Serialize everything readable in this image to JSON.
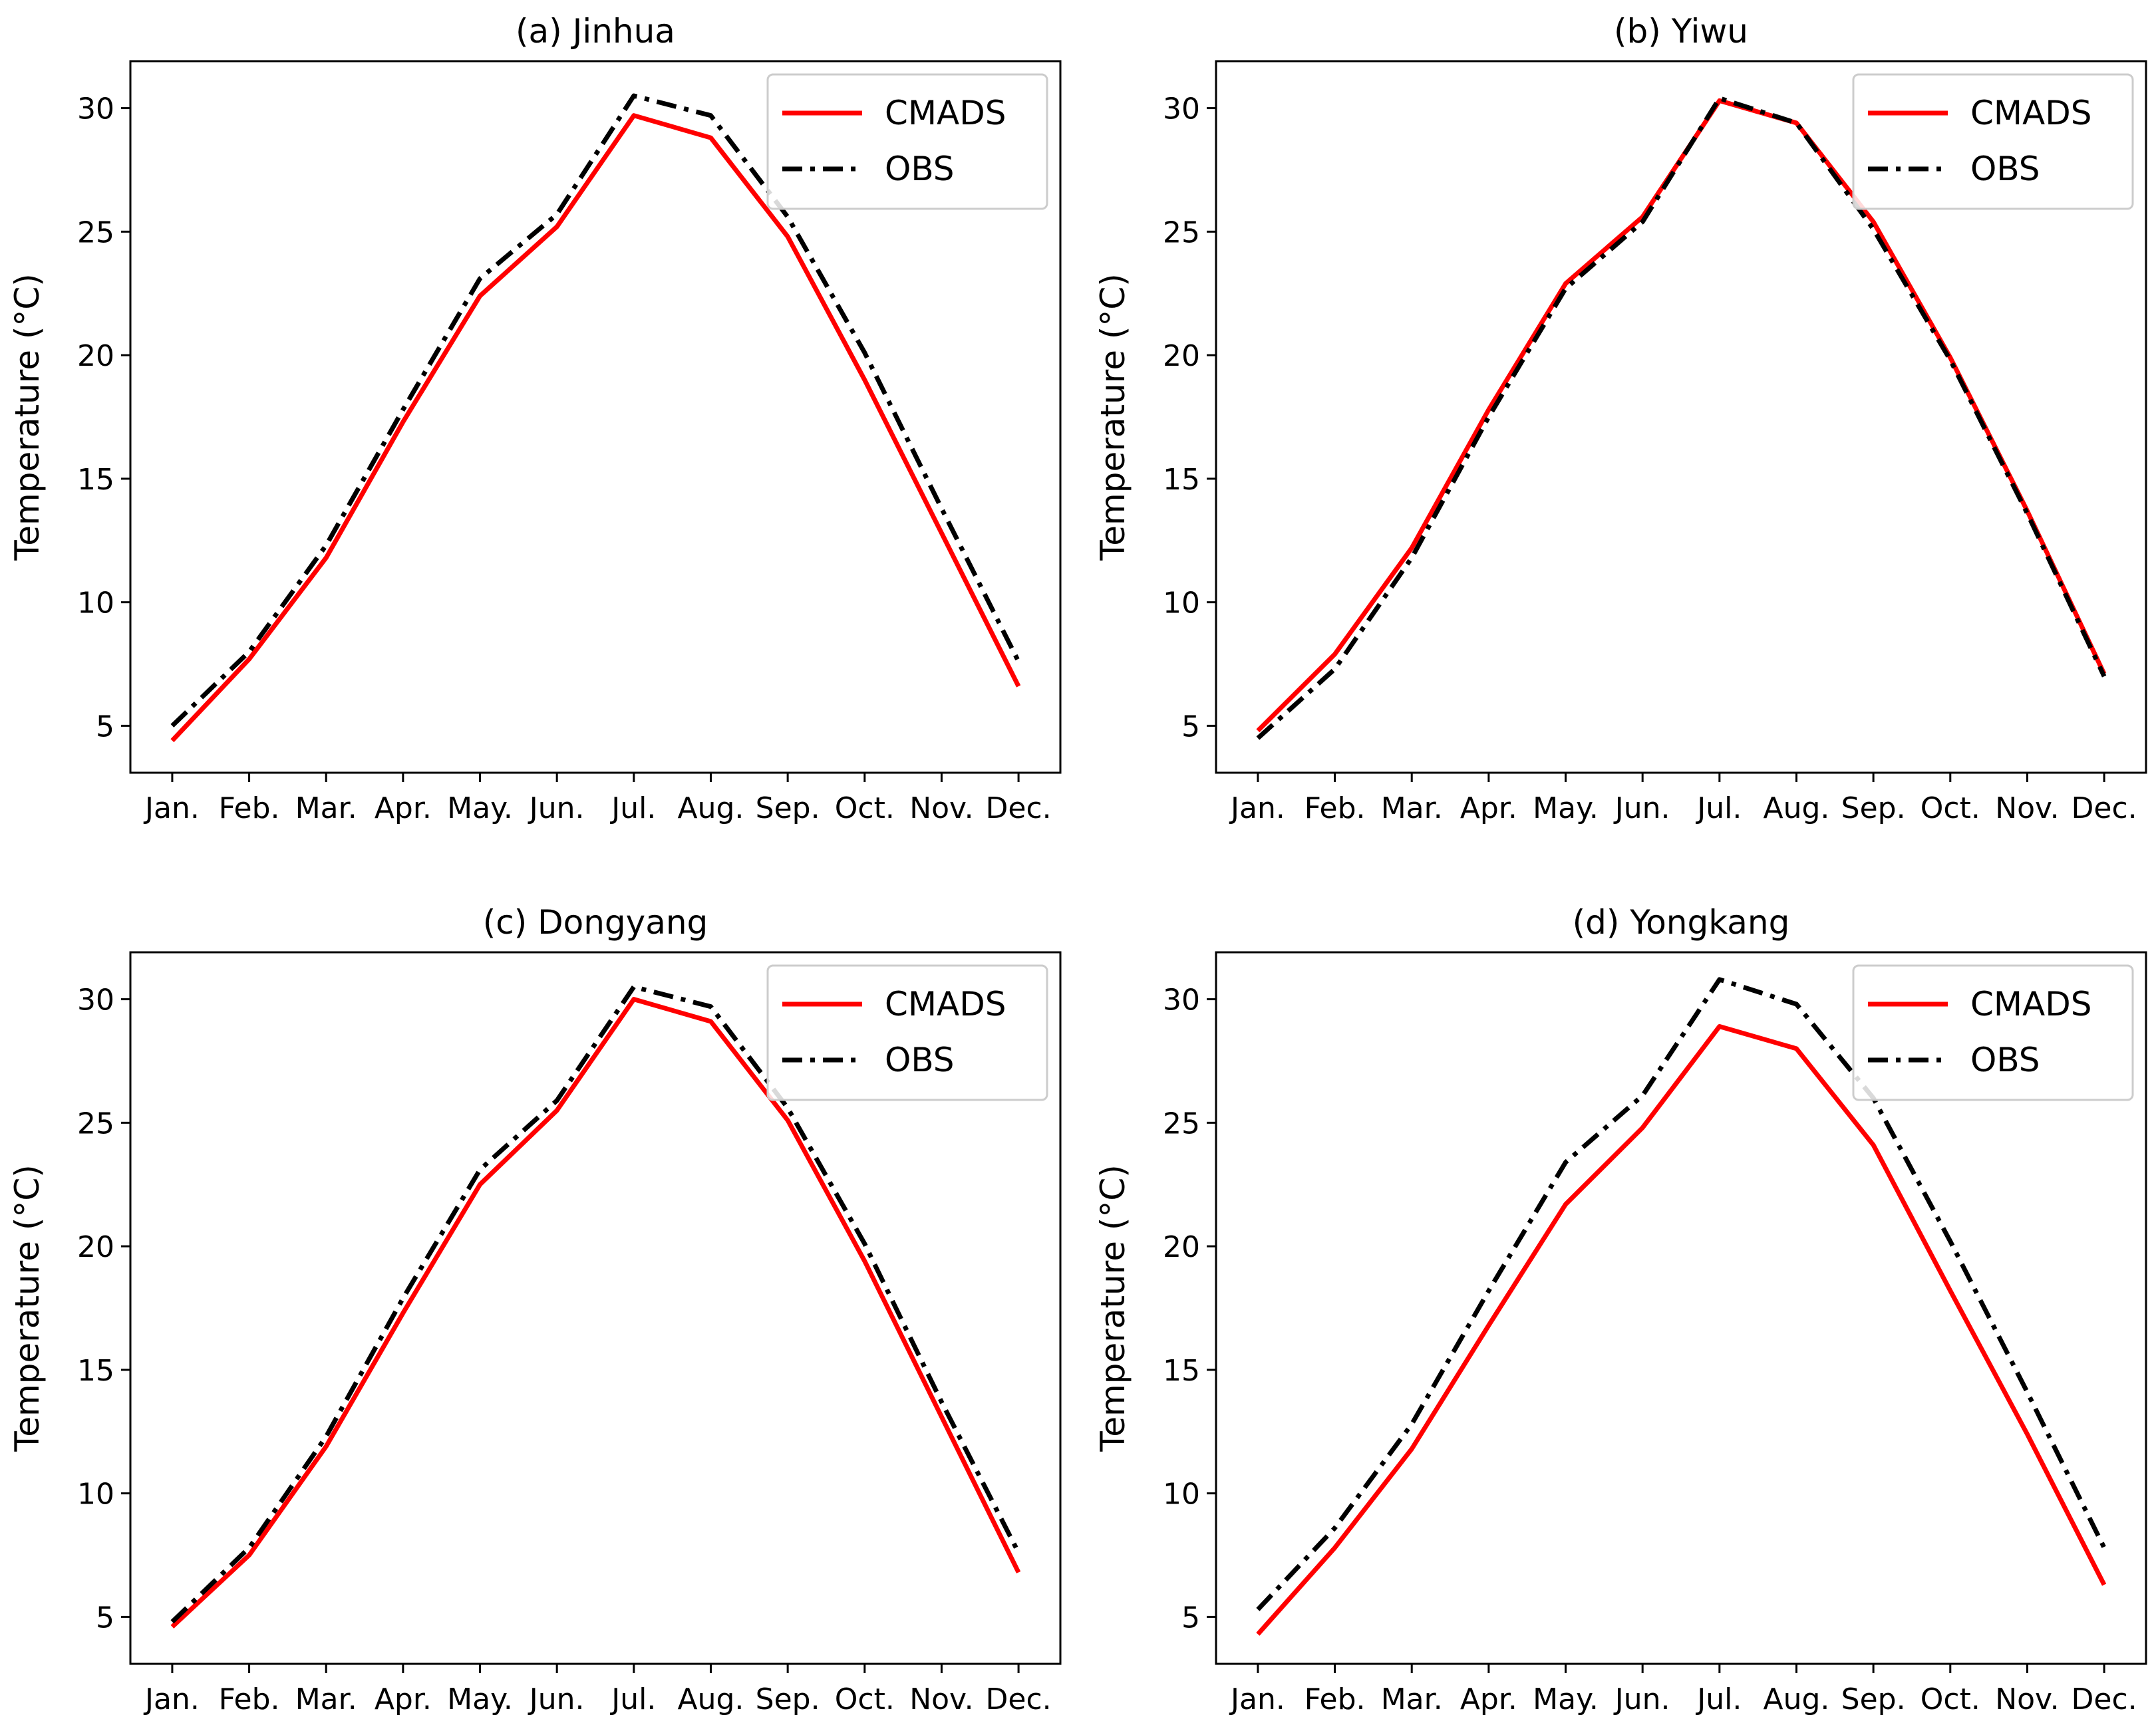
{
  "figure": {
    "ylabel": "Temperature (°C)"
  },
  "chart_data": [
    {
      "type": "line",
      "title": "(a) Jinhua",
      "xlabel": "",
      "ylabel": "Temperature (°C)",
      "categories": [
        "Jan.",
        "Feb.",
        "Mar.",
        "Apr.",
        "May.",
        "Jun.",
        "Jul.",
        "Aug.",
        "Sep.",
        "Oct.",
        "Nov.",
        "Dec."
      ],
      "yticks": [
        5,
        10,
        15,
        20,
        25,
        30
      ],
      "ylim": [
        3.1,
        31.9
      ],
      "legend_position": "top-right",
      "series": [
        {
          "name": "CMADS",
          "color": "#ff0000",
          "style": "solid",
          "values": [
            4.4,
            7.7,
            11.8,
            17.3,
            22.4,
            25.2,
            29.7,
            28.8,
            24.8,
            19.0,
            12.8,
            6.6
          ]
        },
        {
          "name": "OBS",
          "color": "#000000",
          "style": "dashdot",
          "values": [
            5.0,
            8.0,
            12.3,
            17.8,
            23.1,
            25.7,
            30.5,
            29.7,
            25.6,
            20.1,
            13.8,
            7.6
          ]
        }
      ]
    },
    {
      "type": "line",
      "title": "(b) Yiwu",
      "xlabel": "",
      "ylabel": "Temperature (°C)",
      "categories": [
        "Jan.",
        "Feb.",
        "Mar.",
        "Apr.",
        "May.",
        "Jun.",
        "Jul.",
        "Aug.",
        "Sep.",
        "Oct.",
        "Nov.",
        "Dec."
      ],
      "yticks": [
        5,
        10,
        15,
        20,
        25,
        30
      ],
      "ylim": [
        3.1,
        31.9
      ],
      "legend_position": "top-right",
      "series": [
        {
          "name": "CMADS",
          "color": "#ff0000",
          "style": "solid",
          "values": [
            4.8,
            7.9,
            12.2,
            17.8,
            22.9,
            25.6,
            30.3,
            29.4,
            25.4,
            19.9,
            13.7,
            7.1
          ]
        },
        {
          "name": "OBS",
          "color": "#000000",
          "style": "dashdot",
          "values": [
            4.5,
            7.3,
            11.8,
            17.5,
            22.7,
            25.4,
            30.4,
            29.4,
            25.1,
            19.8,
            13.6,
            7.0
          ]
        }
      ]
    },
    {
      "type": "line",
      "title": "(c) Dongyang",
      "xlabel": "",
      "ylabel": "Temperature (°C)",
      "categories": [
        "Jan.",
        "Feb.",
        "Mar.",
        "Apr.",
        "May.",
        "Jun.",
        "Jul.",
        "Aug.",
        "Sep.",
        "Oct.",
        "Nov.",
        "Dec."
      ],
      "yticks": [
        5,
        10,
        15,
        20,
        25,
        30
      ],
      "ylim": [
        3.1,
        31.9
      ],
      "legend_position": "top-right",
      "series": [
        {
          "name": "CMADS",
          "color": "#ff0000",
          "style": "solid",
          "values": [
            4.6,
            7.5,
            11.9,
            17.3,
            22.5,
            25.5,
            30.0,
            29.1,
            25.1,
            19.4,
            13.1,
            6.8
          ]
        },
        {
          "name": "OBS",
          "color": "#000000",
          "style": "dashdot",
          "values": [
            4.8,
            7.8,
            12.3,
            17.9,
            23.1,
            25.9,
            30.5,
            29.7,
            25.6,
            20.1,
            13.7,
            7.6
          ]
        }
      ]
    },
    {
      "type": "line",
      "title": "(d) Yongkang",
      "xlabel": "",
      "ylabel": "Temperature (°C)",
      "categories": [
        "Jan.",
        "Feb.",
        "Mar.",
        "Apr.",
        "May.",
        "Jun.",
        "Jul.",
        "Aug.",
        "Sep.",
        "Oct.",
        "Nov.",
        "Dec."
      ],
      "yticks": [
        5,
        10,
        15,
        20,
        25,
        30
      ],
      "ylim": [
        3.1,
        31.9
      ],
      "legend_position": "top-right",
      "series": [
        {
          "name": "CMADS",
          "color": "#ff0000",
          "style": "solid",
          "values": [
            4.3,
            7.8,
            11.8,
            16.8,
            21.7,
            24.8,
            28.9,
            28.0,
            24.1,
            18.2,
            12.4,
            6.3
          ]
        },
        {
          "name": "OBS",
          "color": "#000000",
          "style": "dashdot",
          "values": [
            5.3,
            8.6,
            12.8,
            18.2,
            23.4,
            26.1,
            30.8,
            29.8,
            26.0,
            20.2,
            14.1,
            7.8
          ]
        }
      ]
    }
  ]
}
